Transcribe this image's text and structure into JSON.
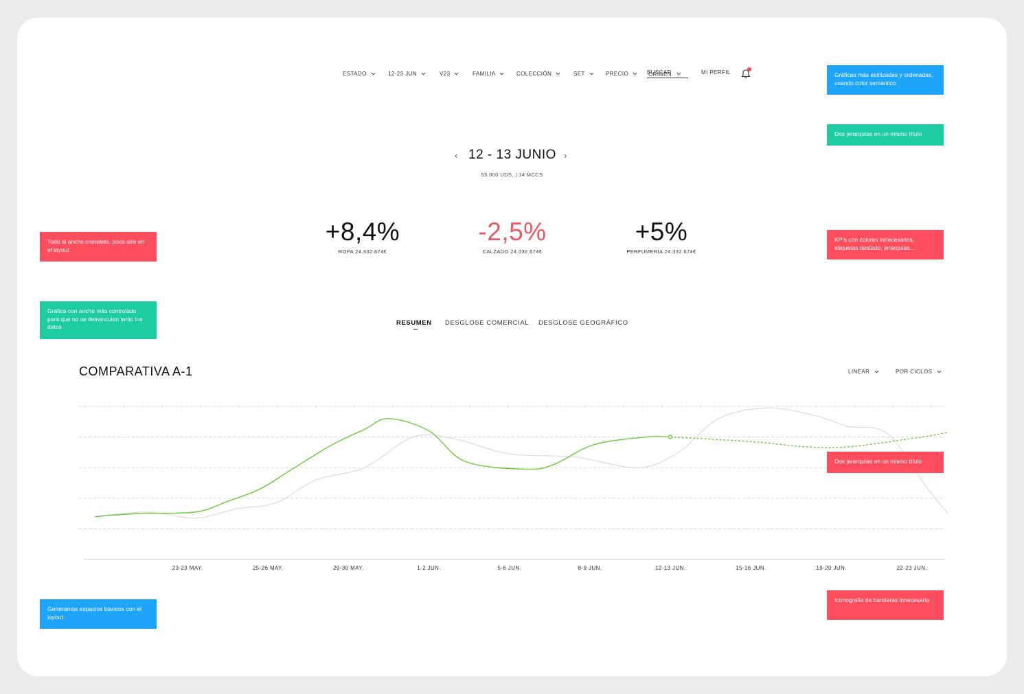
{
  "nav": {
    "items": [
      {
        "label": "ESTADO"
      },
      {
        "label": "12-23 JUN"
      },
      {
        "label": "V23"
      },
      {
        "label": "FAMILIA"
      },
      {
        "label": "COLECCIÓN"
      },
      {
        "label": "SET"
      },
      {
        "label": "PRECIO"
      }
    ],
    "search": {
      "placeholder": "BUSCAR",
      "overlap_label": "ORIGEN"
    },
    "profile": "MI PERFIL"
  },
  "date": {
    "prev": "‹",
    "title": "12 - 13 JUNIO",
    "next": "›",
    "subtitle": "55.000 UDS. | 34 MCCS"
  },
  "kpis": [
    {
      "value": "+8,4%",
      "label": "ROPA 24.332.674€",
      "negative": false
    },
    {
      "value": "-2,5%",
      "label": "CALZADO 24.332.674€",
      "negative": true
    },
    {
      "value": "+5%",
      "label": "PERFUMERÍA 24.332.674€",
      "negative": false
    }
  ],
  "tabs": [
    {
      "label": "RESUMEN",
      "active": true
    },
    {
      "label": "DESGLOSE COMERCIAL",
      "active": false
    },
    {
      "label": "DESGLOSE GEOGRÁFICO",
      "active": false
    }
  ],
  "chart_header": {
    "title": "COMPARATIVA A-1",
    "scale_dropdown": "LINEAR",
    "cycle_dropdown": "POR CICLOS"
  },
  "chart_data": {
    "type": "line",
    "categories": [
      "23-23 MAY.",
      "25-26 MAY.",
      "29-30 MAY.",
      "1-2 JUN.",
      "5-6 JUN.",
      "8-9 JUN.",
      "12-13 JUN.",
      "15-16 JUN.",
      "19-20 JUN.",
      "22-23 JUN."
    ],
    "ylim": [
      0,
      5
    ],
    "grid": true,
    "colors": {
      "current": "#6cc83a",
      "previous": "#dcdcdc",
      "grid": "#d8d8d8",
      "axis": "#cccccc"
    },
    "series": [
      {
        "key": "current",
        "x": [
          -1.15,
          -0.6,
          0.1,
          0.5,
          0.9,
          1.3,
          1.8,
          2.2,
          2.5,
          3.0,
          3.45,
          4.2,
          4.55,
          5.05,
          5.7,
          6.0
        ],
        "y": [
          1.4,
          1.5,
          1.55,
          1.9,
          2.3,
          2.95,
          3.75,
          4.25,
          4.6,
          4.2,
          3.2,
          2.95,
          3.1,
          3.75,
          4.0,
          4.0
        ],
        "highlight_index": 15
      },
      {
        "key": "current_projection",
        "dashed": true,
        "x": [
          6.0,
          7.0,
          8.0,
          9.0,
          9.45
        ],
        "y": [
          4.0,
          3.85,
          3.65,
          3.95,
          4.15
        ]
      },
      {
        "key": "previous",
        "x": [
          -1.15,
          -0.5,
          0.1,
          0.6,
          1.1,
          1.6,
          2.2,
          2.8,
          3.3,
          4.0,
          4.8,
          5.6,
          6.1,
          6.6,
          7.2,
          7.8,
          8.2,
          8.7,
          9.2,
          9.45
        ],
        "y": [
          1.4,
          1.55,
          1.35,
          1.65,
          1.85,
          2.6,
          3.0,
          4.0,
          3.95,
          3.45,
          3.35,
          3.0,
          3.5,
          4.6,
          4.95,
          4.7,
          4.35,
          4.1,
          2.3,
          1.5
        ]
      }
    ]
  },
  "notes": [
    {
      "key": "n1",
      "text": "Gráficas más estilizadas y ordenadas, usando color semántico",
      "color": "blue"
    },
    {
      "key": "n2",
      "text": "Dos jerarquías en un mismo título",
      "color": "green"
    },
    {
      "key": "n3",
      "text": "KPIs con colores innecesarios, etiquetas destado, jerarquías...",
      "color": "red"
    },
    {
      "key": "n4",
      "text": "Dos jerarquías en un mismo título",
      "color": "red"
    },
    {
      "key": "n5",
      "text": "Iconografía de banderas innecesaria",
      "color": "red"
    },
    {
      "key": "n6",
      "text": "Todo al ancho completo, poco aire en el layout",
      "color": "red"
    },
    {
      "key": "n7",
      "text": "Gráfica con ancho más controlado para que no se desvinculen tanto los datos",
      "color": "green"
    },
    {
      "key": "n8",
      "text": "Generamos espacios blancos con el layout",
      "color": "blue"
    }
  ]
}
